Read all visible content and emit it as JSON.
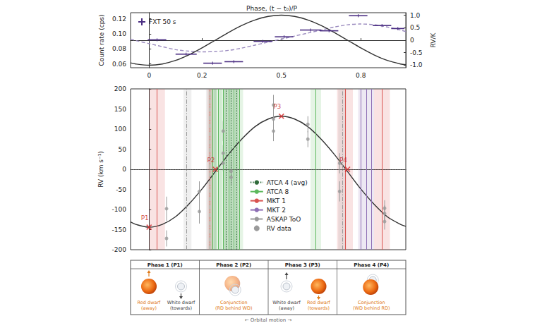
{
  "chart_data": [
    {
      "type": "scatter",
      "title": "Phase, (t − t₀)/P",
      "ylabel": "Count rate (cps)",
      "y2label": "RV/K",
      "xlim": [
        -0.07,
        0.97
      ],
      "xticks": [
        0,
        0.2,
        0.5,
        0.8
      ],
      "ylim": [
        0.055,
        0.128
      ],
      "yticks": [
        0.06,
        0.08,
        {
          "value": 0.1,
          "label": "0.10"
        },
        0.12
      ],
      "y2lim": [
        -1.1,
        1.1
      ],
      "y2ticks": [
        {
          "value": -1,
          "label": "-1.0"
        },
        -0.5,
        0,
        0.5,
        {
          "value": 1,
          "label": "1.0"
        }
      ],
      "grid": false,
      "legend": "upper left",
      "series": [
        {
          "name": "FXT 50 s",
          "type": "errorbar",
          "color": "#4b2e83",
          "marker": "cross",
          "x": [
            0.03,
            0.14,
            0.24,
            0.32,
            0.43,
            0.51,
            0.61,
            0.68,
            0.79,
            0.88,
            0.94
          ],
          "values": [
            0.092,
            0.073,
            0.061,
            0.063,
            0.09,
            0.096,
            0.105,
            0.104,
            0.124,
            0.111,
            0.107
          ],
          "xerr": [
            0.035,
            0.04,
            0.035,
            0.035,
            0.035,
            0.035,
            0.04,
            0.035,
            0.035,
            0.035,
            0.025
          ],
          "yerr": [
            0.002,
            0.002,
            0.002,
            0.002,
            0.002,
            0.002,
            0.002,
            0.002,
            0.002,
            0.002,
            0.002
          ]
        },
        {
          "type": "line",
          "color": "#9b8bbf",
          "line_style": "dashed",
          "x": [
            -0.07,
            -0.05,
            0,
            0.05,
            0.1,
            0.15,
            0.2,
            0.25,
            0.3,
            0.35,
            0.4,
            0.45,
            0.5,
            0.55,
            0.6,
            0.65,
            0.7,
            0.75,
            0.8,
            0.85,
            0.9,
            0.95,
            0.97
          ],
          "values": [
            0.093,
            0.091,
            0.087,
            0.083,
            0.079,
            0.077,
            0.076,
            0.0765,
            0.078,
            0.081,
            0.085,
            0.089,
            0.093,
            0.097,
            0.101,
            0.105,
            0.109,
            0.112,
            0.113,
            0.112,
            0.109,
            0.105,
            0.103
          ]
        },
        {
          "type": "line",
          "axis": "y2",
          "color": "#333333",
          "line_style": "solid",
          "x": [
            -0.07,
            -0.05,
            0,
            0.05,
            0.1,
            0.15,
            0.2,
            0.25,
            0.3,
            0.35,
            0.4,
            0.45,
            0.5,
            0.55,
            0.6,
            0.65,
            0.7,
            0.75,
            0.8,
            0.85,
            0.9,
            0.95,
            0.97
          ],
          "values": [
            -0.905,
            -0.951,
            -1,
            -0.951,
            -0.809,
            -0.588,
            -0.309,
            0,
            0.309,
            0.588,
            0.809,
            0.951,
            1,
            0.951,
            0.809,
            0.588,
            0.309,
            0,
            -0.309,
            -0.588,
            -0.809,
            -0.951,
            -0.982
          ]
        }
      ]
    },
    {
      "type": "scatter",
      "ylabel": "RV (km s⁻¹)",
      "xlim": [
        -0.07,
        0.97
      ],
      "ylim": [
        -200,
        200
      ],
      "yticks": [
        -200,
        -150,
        -100,
        -50,
        0,
        50,
        100,
        150,
        200
      ],
      "tick_labels": "y",
      "grid": false,
      "legend": "center",
      "reference_lines": [
        {
          "axis": "y",
          "value": 0,
          "line_style": "dotted"
        }
      ],
      "series": [
        {
          "name": "ATCA 4 (avg)",
          "type": "vline",
          "color": "#2f6b3a",
          "line_style": "dotted",
          "x": [
            0.245,
            0.29,
            0.31,
            0.33
          ],
          "xerr": [
            0.01,
            0.01,
            0.01,
            0.01
          ]
        },
        {
          "name": "ATCA 8",
          "type": "vline",
          "color": "#5cb85c",
          "line_style": "solid",
          "x": [
            0.24,
            0.26,
            0.28,
            0.3,
            0.32,
            0.34,
            0.63
          ],
          "xerr": [
            0.015,
            0.015,
            0.015,
            0.015,
            0.015,
            0.015,
            0.02
          ]
        },
        {
          "name": "MKT 1",
          "type": "vline",
          "color": "#d9534f",
          "line_style": "solid",
          "x": [
            0.03,
            0.23,
            0.74,
            0.88
          ],
          "xerr": [
            0.03,
            0.01,
            0.03,
            0.03
          ]
        },
        {
          "name": "MKT 2",
          "type": "vline",
          "color": "#8e6fb5",
          "line_style": "solid",
          "x": [
            0.8,
            0.82,
            0.84
          ],
          "xerr": [
            0.01,
            0.01,
            0.01
          ]
        },
        {
          "name": "ASKAP ToO",
          "type": "vline",
          "color": "#999999",
          "line_style": "dashdot",
          "x": [
            0.145,
            0.225,
            0.73
          ],
          "xerr": [
            0.015,
            0.01,
            0.015
          ]
        },
        {
          "name": "RV data",
          "type": "errorbar",
          "color": "#9a9a9a",
          "marker": "circle",
          "x": [
            0.066,
            0.066,
            0.19,
            0.19,
            0.28,
            0.28,
            0.28,
            0.31,
            0.31,
            0.47,
            0.47,
            0.47,
            0.6,
            0.6,
            0.72,
            0.72,
            0.89,
            0.89,
            0.89
          ],
          "values": [
            -98,
            -172,
            -55,
            -105,
            95,
            40,
            15,
            -5,
            -20,
            160,
            95,
            125,
            112,
            75,
            15,
            -55,
            -97,
            -110,
            -130
          ],
          "yerr": [
            30,
            20,
            25,
            30,
            25,
            20,
            20,
            25,
            20,
            25,
            25,
            20,
            20,
            20,
            25,
            25,
            20,
            20,
            20
          ]
        },
        {
          "type": "line",
          "color": "#333333",
          "line_style": "solid",
          "x": [
            -0.07,
            -0.05,
            0,
            0.05,
            0.1,
            0.15,
            0.2,
            0.25,
            0.3,
            0.35,
            0.4,
            0.45,
            0.5,
            0.55,
            0.6,
            0.65,
            0.7,
            0.75,
            0.8,
            0.85,
            0.9,
            0.95,
            0.97
          ],
          "values": [
            -131,
            -137,
            -144,
            -137,
            -118,
            -87,
            -49,
            -6,
            37,
            75,
            106,
            125,
            132,
            125,
            106,
            75,
            37,
            -6,
            -49,
            -87,
            -118,
            -137,
            -142
          ]
        }
      ],
      "annotations": [
        {
          "text": "P1",
          "x": 0,
          "y": -144
        },
        {
          "text": "P2",
          "x": 0.25,
          "y": 0
        },
        {
          "text": "P3",
          "x": 0.5,
          "y": 132
        },
        {
          "text": "P4",
          "x": 0.75,
          "y": 0
        }
      ]
    }
  ],
  "diagram": {
    "panels": [
      {
        "title": "Phase 1 (P1)",
        "labels": [
          {
            "text": "Red dwarf (away)",
            "color": "#e07b1a"
          },
          {
            "text": "White dwarf (towards)",
            "color": "#444444"
          }
        ]
      },
      {
        "title": "Phase 2 (P2)",
        "labels": [
          {
            "text": "Conjunction (RD behind WD)",
            "color": "#e07b1a"
          }
        ]
      },
      {
        "title": "Phase 3 (P3)",
        "labels": [
          {
            "text": "White dwarf (away)",
            "color": "#444444"
          },
          {
            "text": "Red dwarf (towards)",
            "color": "#e07b1a"
          }
        ]
      },
      {
        "title": "Phase 4 (P4)",
        "labels": [
          {
            "text": "Conjunction (WD behind RD)",
            "color": "#e07b1a"
          }
        ]
      }
    ],
    "footer": "← Orbital motion →"
  }
}
